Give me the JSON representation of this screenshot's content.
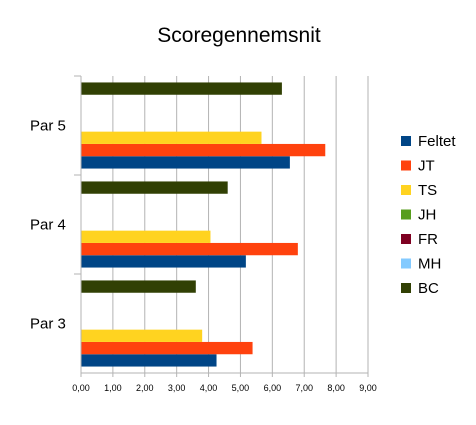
{
  "chart_data": {
    "type": "bar",
    "orientation": "horizontal",
    "title": "Scoregennemsnit",
    "categories": [
      "Par 3",
      "Par 4",
      "Par 5"
    ],
    "xlim": [
      0,
      9
    ],
    "xticks": [
      "0,00",
      "1,00",
      "2,00",
      "3,00",
      "4,00",
      "5,00",
      "6,00",
      "7,00",
      "8,00",
      "9,00"
    ],
    "grid": "vertical",
    "legend_position": "right",
    "series": [
      {
        "name": "Feltet",
        "color": "#004586",
        "values": [
          4.25,
          5.17,
          6.55
        ]
      },
      {
        "name": "JT",
        "color": "#FF420E",
        "values": [
          5.38,
          6.8,
          7.66
        ]
      },
      {
        "name": "TS",
        "color": "#FFD320",
        "values": [
          3.8,
          4.06,
          5.66
        ]
      },
      {
        "name": "JH",
        "color": "#579D1C",
        "values": [
          0,
          0,
          0
        ]
      },
      {
        "name": "FR",
        "color": "#7E0021",
        "values": [
          0,
          0,
          0
        ]
      },
      {
        "name": "MH",
        "color": "#83CAFF",
        "values": [
          0,
          0,
          0
        ]
      },
      {
        "name": "BC",
        "color": "#314004",
        "values": [
          3.6,
          4.6,
          6.3
        ]
      }
    ]
  }
}
